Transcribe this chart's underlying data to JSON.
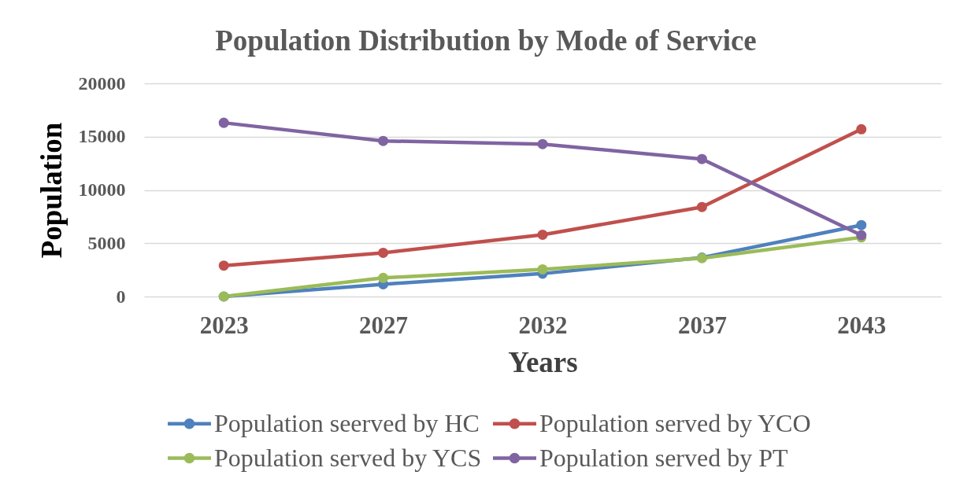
{
  "chart_data": {
    "type": "line",
    "title": "Population Distribution by Mode of Service",
    "xlabel": "Years",
    "ylabel": "Population",
    "categories": [
      "2023",
      "2027",
      "2032",
      "2037",
      "2043"
    ],
    "series": [
      {
        "name": "Population seerved by HC",
        "color": "#4f81bd",
        "values": [
          0,
          1150,
          2150,
          3650,
          6700
        ]
      },
      {
        "name": "Population served by YCO",
        "color": "#c0504d",
        "values": [
          2900,
          4100,
          5800,
          8400,
          15700
        ]
      },
      {
        "name": "Population served by YCS",
        "color": "#9bbb59",
        "values": [
          0,
          1750,
          2550,
          3600,
          5550
        ]
      },
      {
        "name": "Population served by PT",
        "color": "#8064a2",
        "values": [
          16300,
          14600,
          14300,
          12900,
          5750
        ]
      }
    ],
    "ylim": [
      0,
      20000
    ],
    "yticks": [
      0,
      5000,
      10000,
      15000,
      20000
    ],
    "grid": "y",
    "legend": "bottom",
    "marker": "circle",
    "line_style": "solid"
  }
}
